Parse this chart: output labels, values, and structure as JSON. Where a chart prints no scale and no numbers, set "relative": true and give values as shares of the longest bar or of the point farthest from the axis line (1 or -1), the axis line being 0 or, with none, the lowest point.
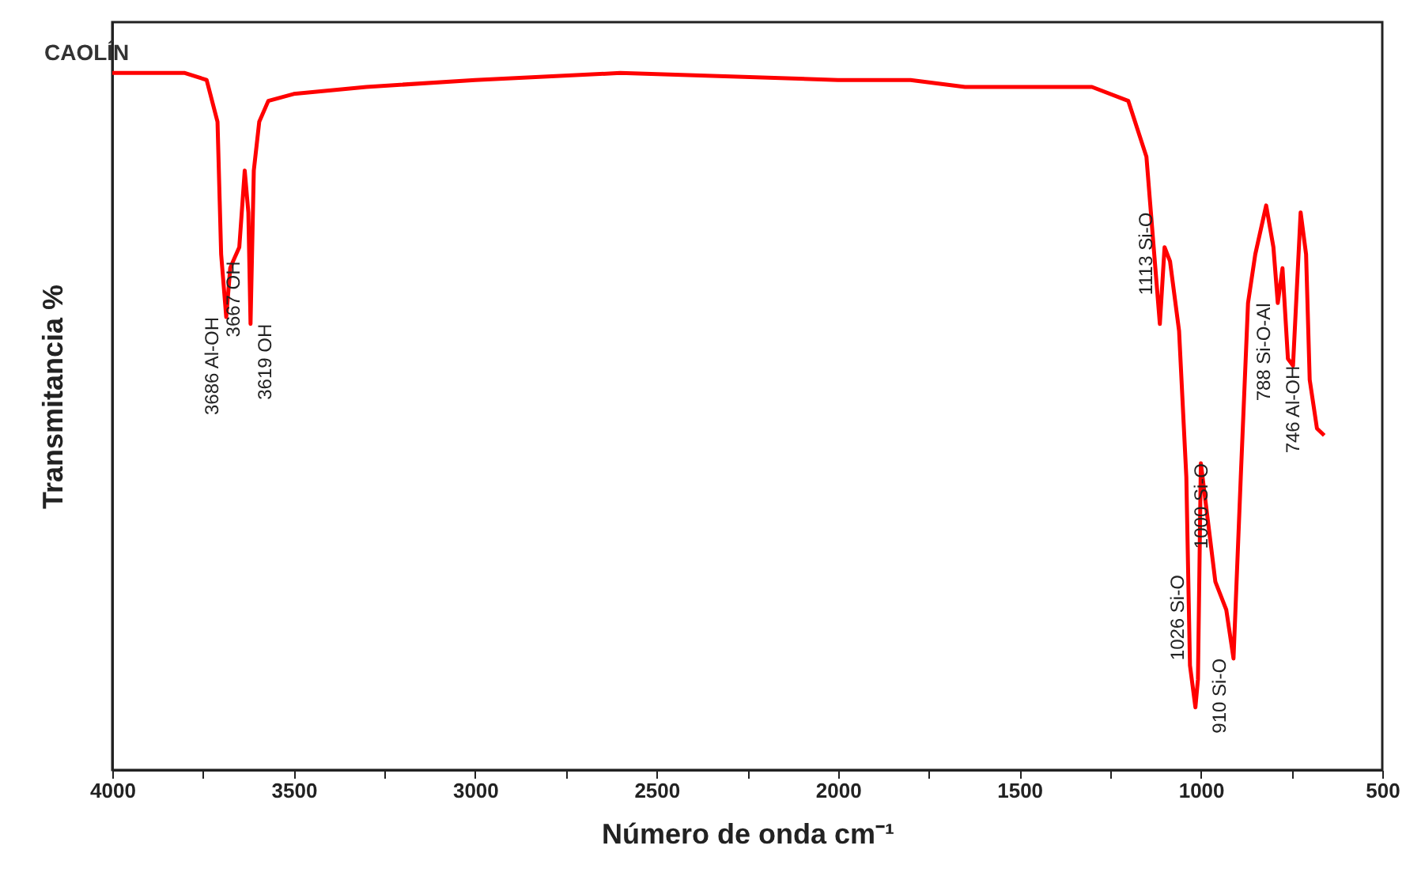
{
  "chart_data": {
    "type": "line",
    "title": "CAOLÍN",
    "xlabel": "Número de onda cm⁻¹",
    "ylabel": "Transmitancia %",
    "relative": true,
    "grid": false,
    "marker": "none",
    "line_style": "solid",
    "xlim": [
      4000,
      500
    ],
    "xticks": [
      4000,
      {
        "value": 3750,
        "label": null
      },
      3500,
      {
        "value": 3250,
        "label": null
      },
      3000,
      {
        "value": 2750,
        "label": null
      },
      2500,
      {
        "value": 2250,
        "label": null
      },
      2000,
      {
        "value": 1750,
        "label": null
      },
      1500,
      {
        "value": 1250,
        "label": null
      },
      1000,
      {
        "value": 750,
        "label": null
      },
      500
    ],
    "series": [
      {
        "color": "#ff0000",
        "x": [
          4000,
          3800,
          3740,
          3710,
          3700,
          3686,
          3675,
          3667,
          3650,
          3635,
          3625,
          3619,
          3610,
          3595,
          3570,
          3500,
          3300,
          3000,
          2600,
          2000,
          1800,
          1650,
          1500,
          1300,
          1200,
          1150,
          1130,
          1113,
          1100,
          1085,
          1060,
          1040,
          1030,
          1015,
          1008,
          1000,
          960,
          930,
          910,
          890,
          870,
          850,
          820,
          800,
          788,
          775,
          760,
          746,
          725,
          710,
          700,
          680,
          660
        ],
        "values": [
          1.0,
          1.0,
          0.99,
          0.93,
          0.74,
          0.65,
          0.72,
          0.73,
          0.75,
          0.86,
          0.8,
          0.64,
          0.86,
          0.93,
          0.96,
          0.97,
          0.98,
          0.99,
          1.0,
          0.99,
          0.99,
          0.98,
          0.98,
          0.98,
          0.96,
          0.88,
          0.75,
          0.64,
          0.75,
          0.73,
          0.63,
          0.42,
          0.15,
          0.09,
          0.13,
          0.44,
          0.27,
          0.23,
          0.16,
          0.42,
          0.67,
          0.74,
          0.81,
          0.75,
          0.67,
          0.72,
          0.59,
          0.58,
          0.8,
          0.74,
          0.56,
          0.49,
          0.48
        ]
      }
    ],
    "annotations": [
      {
        "text": "3686 Al-OH",
        "x": 3686,
        "y": 0.65
      },
      {
        "text": "3667 OH",
        "x": 3667,
        "y": 0.73
      },
      {
        "text": "3619 OH",
        "x": 3619,
        "y": 0.64
      },
      {
        "text": "1113 Si-O",
        "x": 1113,
        "y": 0.8
      },
      {
        "text": "1026 Si-O",
        "x": 1026,
        "y": 0.28
      },
      {
        "text": "1000 Si-O",
        "x": 1000,
        "y": 0.44
      },
      {
        "text": "910 Si-O",
        "x": 910,
        "y": 0.16
      },
      {
        "text": "788 Si-O-Al",
        "x": 788,
        "y": 0.67
      },
      {
        "text": "746 Al-OH",
        "x": 746,
        "y": 0.58
      }
    ]
  }
}
